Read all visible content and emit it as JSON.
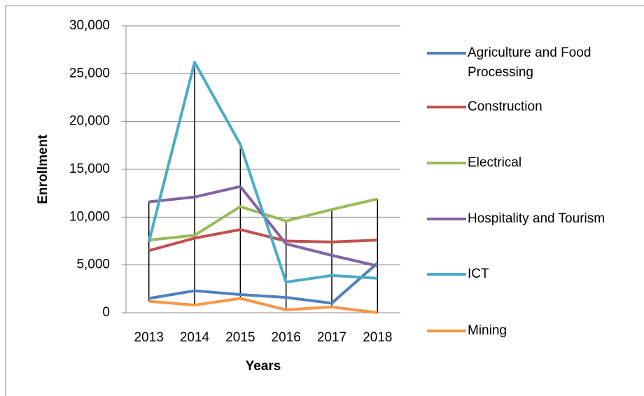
{
  "chart_data": {
    "type": "line",
    "x_label": "Years",
    "y_label": "Enrollment",
    "categories": [
      "2013",
      "2014",
      "2015",
      "2016",
      "2017",
      "2018"
    ],
    "series": [
      {
        "name": "Agriculture and Food Processing",
        "color": "#4f81bd",
        "values": [
          1500,
          2300,
          1900,
          1600,
          1000,
          5200
        ]
      },
      {
        "name": "Construction",
        "color": "#c0504d",
        "values": [
          6500,
          7800,
          8700,
          7500,
          7400,
          7600
        ]
      },
      {
        "name": "Electrical",
        "color": "#9bbb59",
        "values": [
          7600,
          8100,
          11100,
          9600,
          10800,
          11900
        ]
      },
      {
        "name": "Hospitality and Tourism",
        "color": "#8064a2",
        "values": [
          11600,
          12100,
          13200,
          7200,
          6000,
          4900
        ]
      },
      {
        "name": "ICT",
        "color": "#4bacc6",
        "values": [
          7400,
          26200,
          17600,
          3200,
          3900,
          3600
        ]
      },
      {
        "name": "Mining",
        "color": "#f79646",
        "values": [
          1200,
          800,
          1500,
          300,
          600,
          0
        ]
      }
    ],
    "ylim": [
      0,
      30000
    ],
    "yticks": [
      0,
      {
        "value": 5000,
        "label": "5,000"
      },
      {
        "value": 10000,
        "label": "10,000"
      },
      {
        "value": 15000,
        "label": "15,000"
      },
      {
        "value": 20000,
        "label": "20,000"
      },
      {
        "value": 25000,
        "label": "25,000"
      },
      {
        "value": 30000,
        "label": "30,000"
      }
    ],
    "grid": true,
    "high_low_lines": true,
    "legend": "right"
  }
}
